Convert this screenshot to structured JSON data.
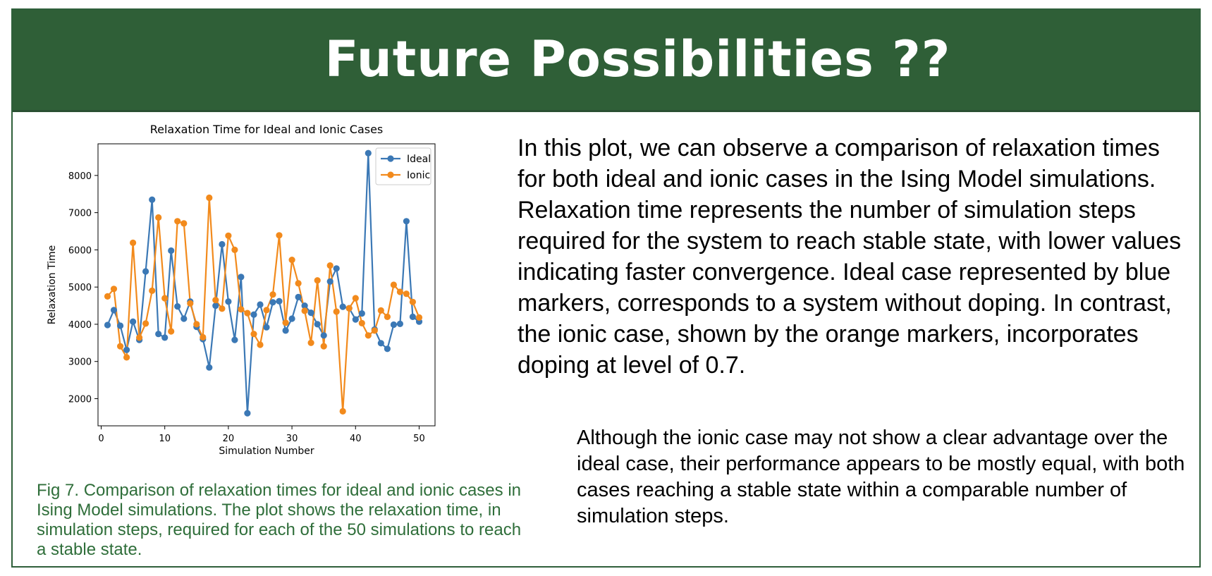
{
  "header": {
    "title": "Future Possibilities ??"
  },
  "colors": {
    "header_bg": "#2f5f37",
    "caption_text": "#2f6e3a",
    "ideal": "#3b78b5",
    "ionic": "#f28a1c"
  },
  "chart_data": {
    "type": "line",
    "title": "Relaxation Time for Ideal and Ionic Cases",
    "xlabel": "Simulation Number",
    "ylabel": "Relaxation Time",
    "xlim": [
      -0.5,
      52.5
    ],
    "ylim": [
      1270,
      8850
    ],
    "xticks": [
      0,
      10,
      20,
      30,
      40,
      50
    ],
    "yticks": [
      2000,
      3000,
      4000,
      5000,
      6000,
      7000,
      8000
    ],
    "grid": false,
    "legend_position": "top-right",
    "markers": "circle",
    "x": [
      1,
      2,
      3,
      4,
      5,
      6,
      7,
      8,
      9,
      10,
      11,
      12,
      13,
      14,
      15,
      16,
      17,
      18,
      19,
      20,
      21,
      22,
      23,
      24,
      25,
      26,
      27,
      28,
      29,
      30,
      31,
      32,
      33,
      34,
      35,
      36,
      37,
      38,
      39,
      40,
      41,
      42,
      43,
      44,
      45,
      46,
      47,
      48,
      49,
      50
    ],
    "series": [
      {
        "name": "Ideal",
        "color": "#3b78b5",
        "values": [
          3980,
          4380,
          3960,
          3310,
          4070,
          3580,
          5420,
          7350,
          3740,
          3640,
          5980,
          4480,
          4150,
          4610,
          3930,
          3600,
          2840,
          4500,
          6150,
          4610,
          3580,
          5270,
          1610,
          4260,
          4530,
          3920,
          4590,
          4620,
          3830,
          4150,
          4730,
          4500,
          4310,
          4000,
          3700,
          5150,
          5500,
          4470,
          4430,
          4130,
          4290,
          8600,
          3860,
          3490,
          3340,
          3990,
          4010,
          6770,
          4200,
          4070
        ]
      },
      {
        "name": "Ionic",
        "color": "#f28a1c",
        "values": [
          4750,
          4950,
          3410,
          3110,
          6190,
          3640,
          4020,
          4900,
          6870,
          4700,
          3810,
          6770,
          6710,
          4560,
          4000,
          3650,
          7400,
          4650,
          4420,
          6380,
          6000,
          4400,
          4300,
          3740,
          3450,
          4380,
          4800,
          6390,
          4040,
          5730,
          5100,
          4360,
          3500,
          5180,
          3410,
          5580,
          4340,
          1660,
          4430,
          4700,
          4030,
          3700,
          3830,
          4370,
          4200,
          5060,
          4870,
          4820,
          4600,
          4180
        ]
      }
    ]
  },
  "caption": {
    "text": "Fig 7. Comparison of relaxation times for ideal and ionic cases in Ising Model simulations. The plot shows the relaxation time, in simulation steps, required for each of the 50 simulations to reach a stable state."
  },
  "body": {
    "paragraph1": "In this plot, we can observe a comparison of relaxation times for both ideal and ionic cases in the Ising Model simulations. Relaxation time represents the number of simulation steps required for the system to reach stable state, with lower values indicating faster convergence. Ideal case represented by blue markers, corresponds to a system without doping. In contrast, the ionic case, shown by the orange markers, incorporates doping at level of 0.7.",
    "paragraph2": "Although the ionic case may not show a clear advantage over the ideal case, their performance appears to be mostly equal, with both cases reaching a stable state within a comparable number of simulation steps."
  }
}
